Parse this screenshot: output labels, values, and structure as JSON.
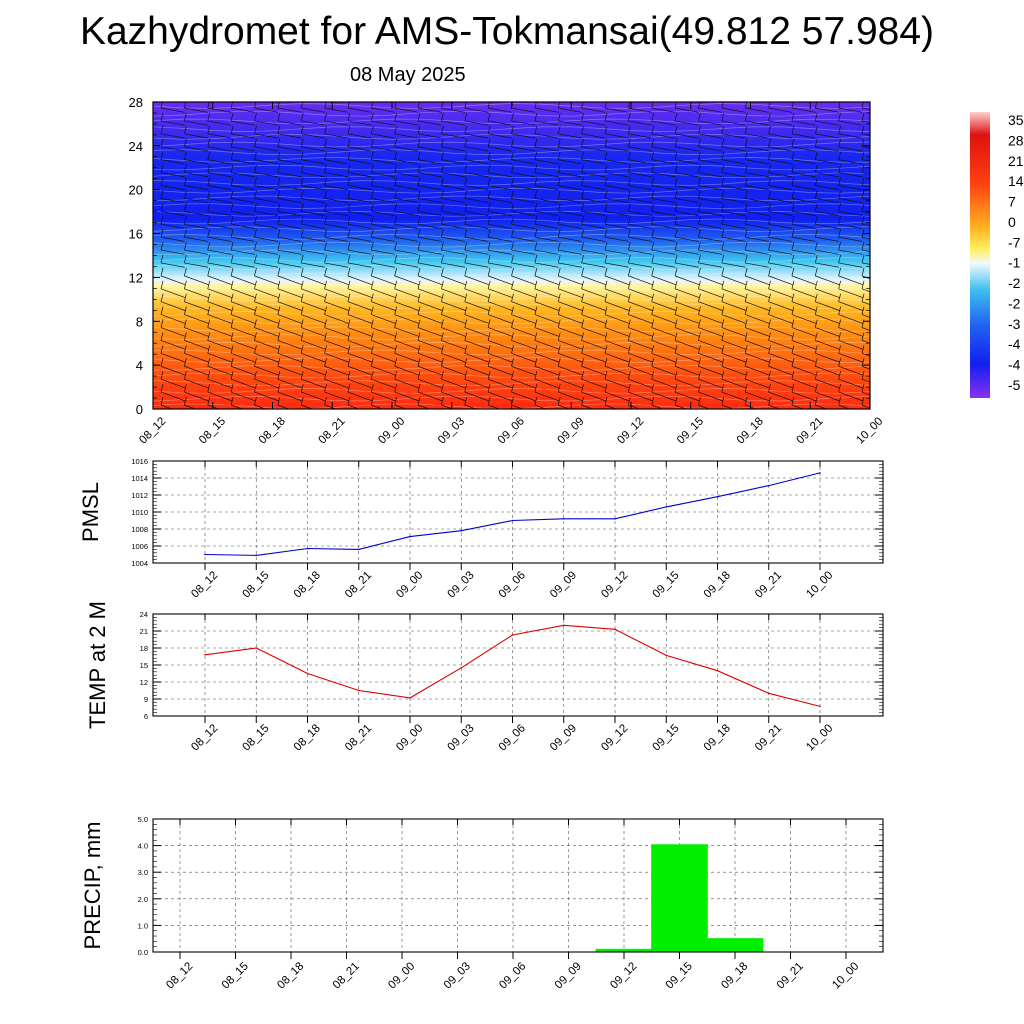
{
  "title": "Kazhydromet for AMS-Tokmansai(49.812 57.984)",
  "subtitle": "08 May 2025",
  "time_labels": [
    "08_12",
    "08_15",
    "08_18",
    "08_21",
    "09_00",
    "09_03",
    "09_06",
    "09_09",
    "09_12",
    "09_15",
    "09_18",
    "09_21",
    "10_00"
  ],
  "chart_data": [
    {
      "type": "heatmap",
      "name": "cross-section",
      "x": [
        "08_12",
        "08_15",
        "08_18",
        "08_21",
        "09_00",
        "09_03",
        "09_06",
        "09_09",
        "09_12",
        "09_15",
        "09_18",
        "09_21",
        "10_00"
      ],
      "ylim": [
        0,
        28
      ],
      "yticks": [
        0,
        4,
        8,
        12,
        16,
        20,
        24,
        28
      ],
      "colorbar_labels": [
        "35",
        "28",
        "21",
        "14",
        "7",
        "0",
        "-7",
        "-1",
        "-2",
        "-2",
        "-3",
        "-4",
        "-4",
        "-5"
      ],
      "colors": {
        "warm_low": "#ff2a10",
        "orange": "#ff9a10",
        "yellow": "#fff6a0",
        "cyan": "#30c8f0",
        "blue": "#1020f0",
        "violet": "#6a2cf0"
      },
      "barbs": true
    },
    {
      "type": "line",
      "name": "pmsl",
      "ylabel": "PMSL",
      "x": [
        "08_12",
        "08_15",
        "08_18",
        "08_21",
        "09_00",
        "09_03",
        "09_06",
        "09_09",
        "09_12",
        "09_15",
        "09_18",
        "09_21",
        "10_00"
      ],
      "values": [
        1005.0,
        1004.9,
        1005.7,
        1005.6,
        1007.1,
        1007.8,
        1009.0,
        1009.2,
        1009.2,
        1010.6,
        1011.8,
        1013.1,
        1014.6
      ],
      "ylim": [
        1004,
        1016
      ],
      "yticks": [
        1004,
        1006,
        1008,
        1010,
        1012,
        1014,
        1016
      ],
      "color": "#0000cc",
      "grid": true
    },
    {
      "type": "line",
      "name": "temp",
      "ylabel": "TEMP at 2 M",
      "x": [
        "08_12",
        "08_15",
        "08_18",
        "08_21",
        "09_00",
        "09_03",
        "09_06",
        "09_09",
        "09_12",
        "09_15",
        "09_18",
        "09_21",
        "10_00"
      ],
      "values": [
        16.8,
        18.0,
        13.5,
        10.5,
        9.2,
        14.5,
        20.3,
        22.0,
        21.3,
        16.7,
        14.0,
        10.0,
        7.7
      ],
      "ylim": [
        6,
        24
      ],
      "yticks": [
        6,
        9,
        12,
        15,
        18,
        21,
        24
      ],
      "color": "#dd0000",
      "grid": true
    },
    {
      "type": "bar",
      "name": "precip",
      "ylabel": "PRECIP, mm",
      "x": [
        "08_12",
        "08_15",
        "08_18",
        "08_21",
        "09_00",
        "09_03",
        "09_06",
        "09_09",
        "09_12",
        "09_15",
        "09_18",
        "09_21",
        "10_00"
      ],
      "values": [
        0,
        0,
        0,
        0,
        0,
        0,
        0,
        0,
        0.12,
        4.05,
        0.52,
        0,
        0
      ],
      "ylim": [
        0,
        5
      ],
      "yticks": [
        "0.0",
        "1.0",
        "2.0",
        "3.0",
        "4.0",
        "5.0"
      ],
      "color": "#00ee00",
      "grid": true
    }
  ]
}
